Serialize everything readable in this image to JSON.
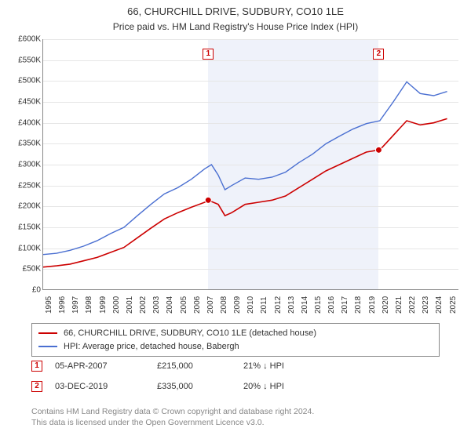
{
  "title": {
    "line1": "66, CHURCHILL DRIVE, SUDBURY, CO10 1LE",
    "line2": "Price paid vs. HM Land Registry's House Price Index (HPI)"
  },
  "chart": {
    "type": "line",
    "background_color": "#ffffff",
    "grid_color": "#e6e6e6",
    "axis_color": "#888888",
    "text_color": "#333333",
    "shaded_band_color": "rgba(120,150,210,0.12)",
    "label_fontsize": 10,
    "x": {
      "min": 1995,
      "max": 2025.9,
      "ticks": [
        1995,
        1996,
        1997,
        1998,
        1999,
        2000,
        2001,
        2002,
        2003,
        2004,
        2005,
        2006,
        2007,
        2008,
        2009,
        2010,
        2011,
        2012,
        2013,
        2014,
        2015,
        2016,
        2017,
        2018,
        2019,
        2020,
        2021,
        2022,
        2023,
        2024,
        2025
      ],
      "tick_labels": [
        "1995",
        "1996",
        "1997",
        "1998",
        "1999",
        "2000",
        "2001",
        "2002",
        "2003",
        "2004",
        "2005",
        "2006",
        "2007",
        "2008",
        "2009",
        "2010",
        "2011",
        "2012",
        "2013",
        "2014",
        "2015",
        "2016",
        "2017",
        "2018",
        "2019",
        "2020",
        "2021",
        "2022",
        "2023",
        "2024",
        "2025"
      ],
      "rotation": -90
    },
    "y": {
      "min": 0,
      "max": 600000,
      "ticks": [
        0,
        50000,
        100000,
        150000,
        200000,
        250000,
        300000,
        350000,
        400000,
        450000,
        500000,
        550000,
        600000
      ],
      "tick_labels": [
        "£0",
        "£50K",
        "£100K",
        "£150K",
        "£200K",
        "£250K",
        "£300K",
        "£350K",
        "£400K",
        "£450K",
        "£500K",
        "£550K",
        "£600K"
      ]
    },
    "shaded_band": {
      "x_from": 2007.26,
      "x_to": 2019.92
    },
    "series": [
      {
        "id": "subject",
        "label": "66, CHURCHILL DRIVE, SUDBURY, CO10 1LE (detached house)",
        "color": "#cc0000",
        "line_width": 1.6,
        "points": [
          [
            1995,
            55000
          ],
          [
            1996,
            58000
          ],
          [
            1997,
            62000
          ],
          [
            1998,
            70000
          ],
          [
            1999,
            78000
          ],
          [
            2000,
            90000
          ],
          [
            2001,
            102000
          ],
          [
            2002,
            125000
          ],
          [
            2003,
            148000
          ],
          [
            2004,
            170000
          ],
          [
            2005,
            185000
          ],
          [
            2006,
            198000
          ],
          [
            2007,
            210000
          ],
          [
            2007.26,
            215000
          ],
          [
            2008,
            205000
          ],
          [
            2008.5,
            178000
          ],
          [
            2009,
            185000
          ],
          [
            2010,
            205000
          ],
          [
            2011,
            210000
          ],
          [
            2012,
            215000
          ],
          [
            2013,
            225000
          ],
          [
            2014,
            245000
          ],
          [
            2015,
            265000
          ],
          [
            2016,
            285000
          ],
          [
            2017,
            300000
          ],
          [
            2018,
            315000
          ],
          [
            2019,
            330000
          ],
          [
            2019.92,
            335000
          ],
          [
            2020,
            335000
          ],
          [
            2021,
            370000
          ],
          [
            2022,
            405000
          ],
          [
            2023,
            395000
          ],
          [
            2024,
            400000
          ],
          [
            2025,
            410000
          ]
        ]
      },
      {
        "id": "hpi",
        "label": "HPI: Average price, detached house, Babergh",
        "color": "#4a6fd1",
        "line_width": 1.4,
        "points": [
          [
            1995,
            85000
          ],
          [
            1996,
            88000
          ],
          [
            1997,
            95000
          ],
          [
            1998,
            105000
          ],
          [
            1999,
            118000
          ],
          [
            2000,
            135000
          ],
          [
            2001,
            150000
          ],
          [
            2002,
            178000
          ],
          [
            2003,
            205000
          ],
          [
            2004,
            230000
          ],
          [
            2005,
            245000
          ],
          [
            2006,
            265000
          ],
          [
            2007,
            290000
          ],
          [
            2007.5,
            300000
          ],
          [
            2008,
            275000
          ],
          [
            2008.5,
            240000
          ],
          [
            2009,
            250000
          ],
          [
            2010,
            268000
          ],
          [
            2011,
            265000
          ],
          [
            2012,
            270000
          ],
          [
            2013,
            282000
          ],
          [
            2014,
            305000
          ],
          [
            2015,
            325000
          ],
          [
            2016,
            350000
          ],
          [
            2017,
            368000
          ],
          [
            2018,
            385000
          ],
          [
            2019,
            398000
          ],
          [
            2020,
            405000
          ],
          [
            2021,
            450000
          ],
          [
            2022,
            498000
          ],
          [
            2023,
            470000
          ],
          [
            2024,
            465000
          ],
          [
            2025,
            475000
          ]
        ]
      }
    ],
    "sale_markers": [
      {
        "n": "1",
        "x": 2007.26,
        "y": 215000,
        "dot_color": "#cc0000",
        "box_border": "#cc0000"
      },
      {
        "n": "2",
        "x": 2019.92,
        "y": 335000,
        "dot_color": "#cc0000",
        "box_border": "#cc0000"
      }
    ],
    "marker_box_top_y": 578000
  },
  "legend": {
    "border_color": "#888888",
    "rows": [
      {
        "color": "#cc0000",
        "label": "66, CHURCHILL DRIVE, SUDBURY, CO10 1LE (detached house)"
      },
      {
        "color": "#4a6fd1",
        "label": "HPI: Average price, detached house, Babergh"
      }
    ]
  },
  "sales_table": {
    "down_arrow": "↓",
    "rows": [
      {
        "n": "1",
        "date": "05-APR-2007",
        "price": "£215,000",
        "delta_pct": "21%",
        "delta_suffix": "HPI"
      },
      {
        "n": "2",
        "date": "03-DEC-2019",
        "price": "£335,000",
        "delta_pct": "20%",
        "delta_suffix": "HPI"
      }
    ]
  },
  "footer": {
    "line1": "Contains HM Land Registry data © Crown copyright and database right 2024.",
    "line2": "This data is licensed under the Open Government Licence v3.0."
  }
}
